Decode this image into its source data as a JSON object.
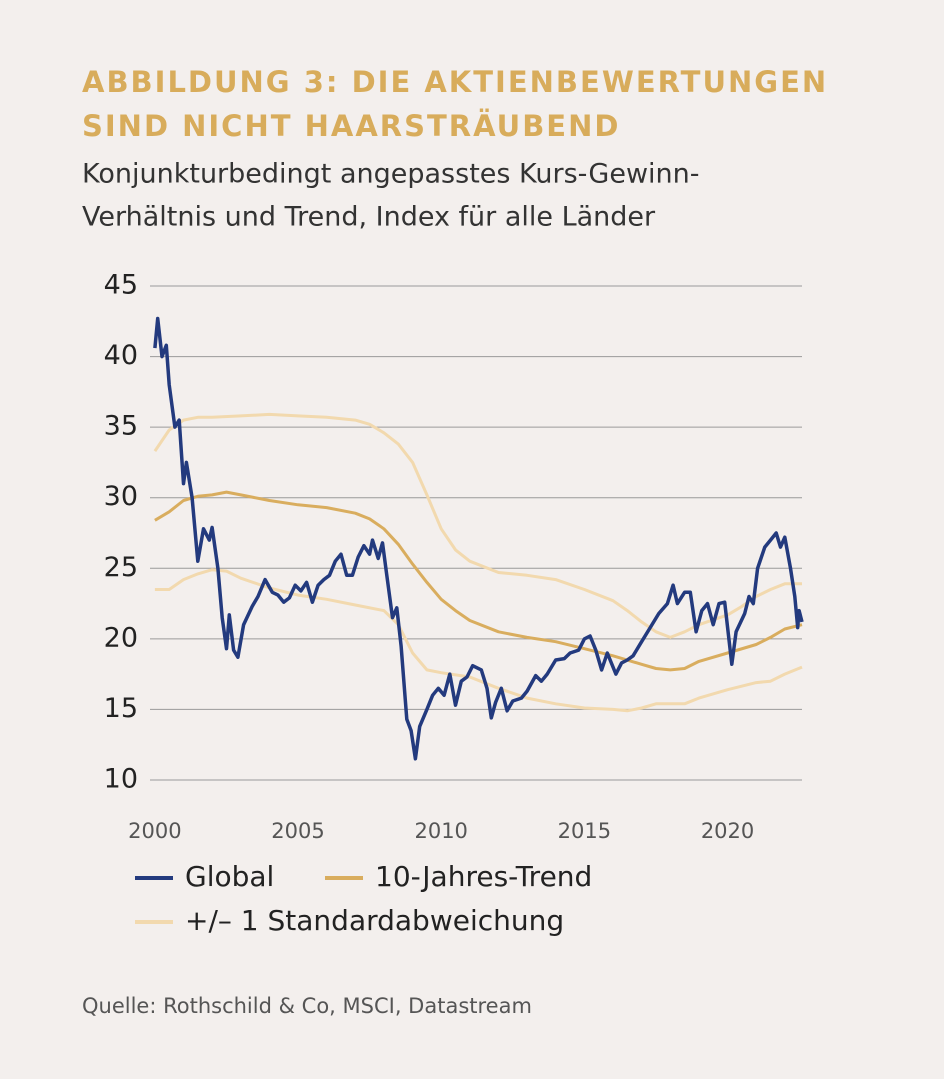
{
  "chart_data": {
    "type": "line",
    "title": [
      "ABBILDUNG 3: DIE AKTIENBEWERTUNGEN",
      "SIND NICHT HAARSTRÄUBEND"
    ],
    "subtitle": [
      "Konjunkturbedingt angepasstes Kurs-Gewinn-",
      "Verhältnis und Trend, Index für alle Länder"
    ],
    "source": "Quelle: Rothschild & Co, MSCI, Datastream",
    "xlim": [
      1999.83,
      2022.6
    ],
    "xticks": [
      2000,
      2005,
      2010,
      2015,
      2020
    ],
    "ylim": [
      10,
      45
    ],
    "yticks": [
      10,
      15,
      20,
      25,
      30,
      35,
      40,
      45
    ],
    "grid": true,
    "series": [
      {
        "name": "+/– 1 Standardabweichung",
        "color": "#f2d9ae",
        "x": [
          2000,
          2000.5,
          2001,
          2001.5,
          2002,
          2003,
          2004,
          2005,
          2006,
          2007,
          2007.5,
          2008,
          2008.5,
          2009,
          2009.5,
          2010,
          2010.5,
          2011,
          2012,
          2013,
          2014,
          2015,
          2016,
          2016.5,
          2017,
          2017.5,
          2018,
          2018.5,
          2019,
          2020,
          2020.5,
          2021,
          2021.5,
          2022,
          2022.6
        ],
        "values": [
          33.3,
          34.8,
          35.5,
          35.7,
          35.7,
          35.8,
          35.9,
          35.8,
          35.7,
          35.5,
          35.2,
          34.6,
          33.8,
          32.5,
          30.2,
          27.8,
          26.3,
          25.5,
          24.7,
          24.5,
          24.2,
          23.5,
          22.7,
          22,
          21.2,
          20.5,
          20.1,
          20.5,
          21,
          21.7,
          22.3,
          23,
          23.5,
          23.9,
          23.9
        ]
      },
      {
        "color": "#f2d9ae",
        "x": [
          2000,
          2000.5,
          2001,
          2001.5,
          2002,
          2002.5,
          2003,
          2004,
          2005,
          2006,
          2007,
          2008,
          2008.5,
          2009,
          2009.5,
          2010,
          2011,
          2012,
          2013,
          2014,
          2015,
          2016,
          2016.5,
          2017,
          2017.5,
          2018.5,
          2019,
          2020,
          2021,
          2021.5,
          2022,
          2022.6
        ],
        "values": [
          23.5,
          23.5,
          24.2,
          24.6,
          24.9,
          24.8,
          24.3,
          23.6,
          23.1,
          22.8,
          22.4,
          22,
          21,
          19,
          17.8,
          17.6,
          17.3,
          16.5,
          15.8,
          15.4,
          15.1,
          15,
          14.9,
          15.1,
          15.4,
          15.4,
          15.8,
          16.4,
          16.9,
          17,
          17.5,
          18
        ]
      },
      {
        "name": "10-Jahres-Trend",
        "color": "#d9ad5e",
        "x": [
          2000,
          2000.5,
          2001,
          2001.5,
          2002,
          2002.5,
          2003,
          2004,
          2005,
          2006,
          2007,
          2007.5,
          2008,
          2008.5,
          2009,
          2009.5,
          2010,
          2010.5,
          2011,
          2012,
          2013,
          2014,
          2015,
          2016,
          2017,
          2017.5,
          2018,
          2018.5,
          2019,
          2020,
          2021,
          2021.5,
          2022,
          2022.6
        ],
        "values": [
          28.4,
          29,
          29.8,
          30.1,
          30.2,
          30.4,
          30.2,
          29.8,
          29.5,
          29.3,
          28.9,
          28.5,
          27.8,
          26.7,
          25.3,
          24,
          22.8,
          22,
          21.3,
          20.5,
          20.1,
          19.8,
          19.3,
          18.8,
          18.2,
          17.9,
          17.8,
          17.9,
          18.4,
          19,
          19.6,
          20.1,
          20.7,
          21
        ]
      },
      {
        "name": "Global",
        "color": "#233a7e",
        "x": [
          2000,
          2000.1,
          2000.25,
          2000.4,
          2000.5,
          2000.7,
          2000.85,
          2001,
          2001.1,
          2001.3,
          2001.5,
          2001.7,
          2001.9,
          2002,
          2002.2,
          2002.35,
          2002.5,
          2002.6,
          2002.75,
          2002.9,
          2003.1,
          2003.4,
          2003.6,
          2003.85,
          2004.1,
          2004.3,
          2004.5,
          2004.7,
          2004.9,
          2005.1,
          2005.3,
          2005.5,
          2005.7,
          2005.9,
          2006.1,
          2006.3,
          2006.5,
          2006.7,
          2006.9,
          2007.1,
          2007.3,
          2007.5,
          2007.6,
          2007.8,
          2007.95,
          2008.1,
          2008.3,
          2008.45,
          2008.6,
          2008.8,
          2008.95,
          2009.1,
          2009.25,
          2009.5,
          2009.7,
          2009.9,
          2010.1,
          2010.3,
          2010.5,
          2010.7,
          2010.9,
          2011.1,
          2011.4,
          2011.6,
          2011.75,
          2011.9,
          2012.1,
          2012.3,
          2012.5,
          2012.8,
          2013,
          2013.3,
          2013.5,
          2013.7,
          2014,
          2014.3,
          2014.5,
          2014.8,
          2015,
          2015.2,
          2015.4,
          2015.6,
          2015.8,
          2016.1,
          2016.3,
          2016.5,
          2016.7,
          2017,
          2017.3,
          2017.6,
          2017.9,
          2018.1,
          2018.25,
          2018.5,
          2018.7,
          2018.9,
          2019.1,
          2019.3,
          2019.5,
          2019.7,
          2019.9,
          2020.15,
          2020.3,
          2020.6,
          2020.75,
          2020.9,
          2021.05,
          2021.3,
          2021.5,
          2021.7,
          2021.85,
          2022,
          2022.2,
          2022.35,
          2022.45,
          2022.5,
          2022.6
        ],
        "values": [
          40.6,
          42.7,
          40,
          40.8,
          38,
          35,
          35.5,
          31,
          32.5,
          30,
          25.5,
          27.8,
          27,
          27.9,
          25,
          21.5,
          19.3,
          21.7,
          19.2,
          18.7,
          21,
          22.3,
          23,
          24.2,
          23.3,
          23.1,
          22.6,
          22.9,
          23.8,
          23.4,
          24,
          22.6,
          23.8,
          24.2,
          24.5,
          25.5,
          26,
          24.5,
          24.5,
          25.8,
          26.6,
          26,
          27,
          25.7,
          26.8,
          24.5,
          21.5,
          22.2,
          19.5,
          14.3,
          13.5,
          11.5,
          13.8,
          15,
          16,
          16.5,
          16,
          17.5,
          15.3,
          17,
          17.3,
          18.1,
          17.8,
          16.5,
          14.4,
          15.5,
          16.5,
          14.9,
          15.6,
          15.8,
          16.3,
          17.4,
          17,
          17.5,
          18.5,
          18.6,
          19,
          19.2,
          20,
          20.2,
          19.2,
          17.8,
          19,
          17.5,
          18.3,
          18.5,
          18.8,
          19.8,
          20.8,
          21.8,
          22.5,
          23.8,
          22.5,
          23.3,
          23.3,
          20.5,
          22,
          22.5,
          21,
          22.5,
          22.6,
          18.2,
          20.5,
          21.8,
          23,
          22.5,
          25,
          26.5,
          27,
          27.5,
          26.5,
          27.2,
          25,
          23,
          20.8,
          22,
          21.2
        ]
      }
    ]
  }
}
